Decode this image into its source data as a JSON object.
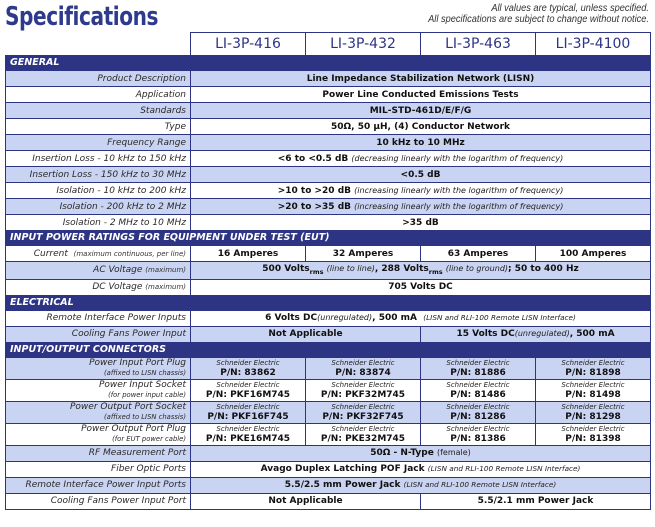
{
  "page": {
    "title": "Specifications",
    "disclaimer_line1": "All values are typical, unless specified.",
    "disclaimer_line2": "All specifications are subject to change without notice."
  },
  "models": [
    "LI-3P-416",
    "LI-3P-432",
    "LI-3P-463",
    "LI-3P-4100"
  ],
  "colors": {
    "header_bg": "#2e3484",
    "row_alt_bg": "#c9d3f2",
    "title_color": "#2e3a8c"
  },
  "sections": {
    "general": {
      "title": "GENERAL",
      "rows": [
        {
          "label": "Product Description",
          "value": "Line Impedance Stabilization Network (LISN)"
        },
        {
          "label": "Application",
          "value": "Power Line Conducted Emissions Tests"
        },
        {
          "label": "Standards",
          "value": "MIL-STD-461D/E/F/G"
        },
        {
          "label": "Type",
          "value": "50Ω, 50 µH, (4) Conductor Network"
        },
        {
          "label": "Frequency Range",
          "value": "10 kHz to 10 MHz"
        },
        {
          "label": "Insertion Loss - 10 kHz to 150 kHz",
          "value": "<6 to <0.5 dB",
          "note": "(decreasing linearly with the logarithm of frequency)"
        },
        {
          "label": "Insertion Loss - 150 kHz to 30 MHz",
          "value": "<0.5 dB"
        },
        {
          "label": "Isolation - 10 kHz to 200 kHz",
          "value": ">10 to >20 dB",
          "note": "(increasing linearly with the logarithm of frequency)"
        },
        {
          "label": "Isolation - 200 kHz to 2 MHz",
          "value": ">20 to >35 dB",
          "note": "(increasing linearly with the logarithm of frequency)"
        },
        {
          "label": "Isolation - 2 MHz to 10 MHz",
          "value": ">35 dB"
        }
      ]
    },
    "input_power": {
      "title": "INPUT POWER RATINGS FOR EQUIPMENT UNDER TEST (EUT)",
      "current": {
        "label": "Current",
        "label_note": "(maximum continuous, per line)",
        "values": [
          "16 Amperes",
          "32 Amperes",
          "63 Amperes",
          "100 Amperes"
        ]
      },
      "ac_voltage": {
        "label": "AC Voltage",
        "label_note": "(maximum)",
        "v1": "500 Volts",
        "rms": "rms",
        "n1": "(line to line)",
        "v2": ", 288 Volts",
        "n2": "(line to ground)",
        "v3": "; 50 to 400 Hz"
      },
      "dc_voltage": {
        "label": "DC Voltage",
        "label_note": "(maximum)",
        "value": "705 Volts DC"
      }
    },
    "electrical": {
      "title": "ELECTRICAL",
      "remote_power": {
        "label": "Remote Interface Power Inputs",
        "value": "6 Volts DC",
        "note1": "(unregulated)",
        "value2": ", 500 mA",
        "note2": "(LISN and RLI-100 Remote LISN Interface)"
      },
      "cooling_fans": {
        "label": "Cooling Fans Power Input",
        "value_left": "Not Applicable",
        "value_right": "15 Volts DC",
        "note_right": "(unregulated)",
        "value_right2": ", 500 mA"
      }
    },
    "connectors": {
      "title": "INPUT/OUTPUT CONNECTORS",
      "manufacturer": "Schneider Electric",
      "part_rows": [
        {
          "label": "Power Input Port Plug",
          "sublabel": "(affixed to LISN chassis)",
          "parts": [
            "P/N: 83862",
            "P/N: 83874",
            "P/N: 81886",
            "P/N: 81898"
          ]
        },
        {
          "label": "Power Input Socket",
          "sublabel": "(for power input cable)",
          "parts": [
            "P/N: PKF16M745",
            "P/N: PKF32M745",
            "P/N: 81486",
            "P/N: 81498"
          ]
        },
        {
          "label": "Power Output Port Socket",
          "sublabel": "(affixed to LISN chassis)",
          "parts": [
            "P/N: PKF16F745",
            "P/N: PKF32F745",
            "P/N: 81286",
            "P/N: 81298"
          ]
        },
        {
          "label": "Power Output Port Plug",
          "sublabel": "(for EUT power cable)",
          "parts": [
            "P/N: PKE16M745",
            "P/N: PKE32M745",
            "P/N: 81386",
            "P/N: 81398"
          ]
        }
      ],
      "rf_port": {
        "label": "RF Measurement Port",
        "value": "50Ω - N-Type",
        "note": "(female)"
      },
      "fiber_optic": {
        "label": "Fiber Optic Ports",
        "value": "Avago Duplex Latching POF Jack",
        "note": "(LISN and RLI-100 Remote LISN Interface)"
      },
      "remote_power_ports": {
        "label": "Remote Interface Power Input Ports",
        "value": "5.5/2.5 mm Power Jack",
        "note": "(LISN and RLI-100 Remote LISN Interface)"
      },
      "cooling_fans_port": {
        "label": "Cooling Fans Power Input Port",
        "value_left": "Not Applicable",
        "value_right": "5.5/2.1 mm Power Jack"
      }
    }
  }
}
